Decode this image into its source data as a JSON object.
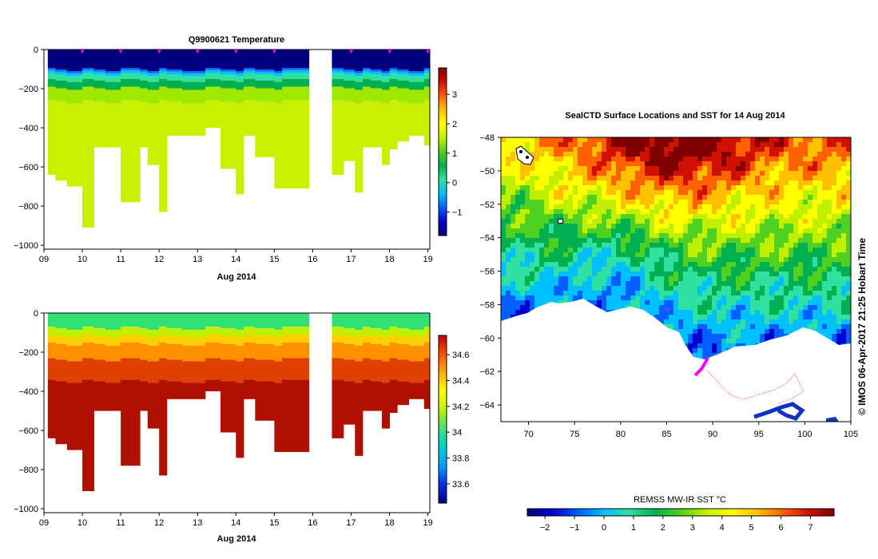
{
  "chart_data": [
    {
      "type": "heatmap",
      "name": "temperature-section",
      "title": "Q9900621  Temperature",
      "xlabel": "Aug 2014",
      "x_ticks": [
        "09",
        "10",
        "11",
        "12",
        "13",
        "14",
        "15",
        "16",
        "17",
        "18",
        "19"
      ],
      "x_range": [
        9,
        19.05
      ],
      "y_ticks": [
        "0",
        "−200",
        "−400",
        "−600",
        "−800",
        "−1000"
      ],
      "y_range": [
        -1020,
        0
      ],
      "colorbar": {
        "ticks": [
          "−1",
          "0",
          "1",
          "2",
          "3"
        ],
        "range": [
          -1.8,
          3.9
        ]
      },
      "profile_markers": [
        10,
        11,
        12,
        13,
        14,
        15,
        17,
        18,
        19
      ],
      "gap": [
        15.9,
        16.5
      ],
      "profile_edges": [
        9.1,
        9.3,
        9.6,
        10.0,
        10.3,
        10.6,
        11.0,
        11.5,
        11.7,
        12.0,
        12.2,
        12.6,
        13.2,
        13.6,
        14.0,
        14.2,
        14.5,
        15.0,
        15.2,
        15.9
      ],
      "profile_edges_2": [
        16.5,
        16.8,
        17.1,
        17.3,
        17.5,
        17.8,
        18.0,
        18.2,
        18.5,
        18.9,
        19.05
      ],
      "profile_depths": [
        640,
        670,
        700,
        910,
        500,
        500,
        780,
        500,
        590,
        830,
        440,
        440,
        400,
        610,
        740,
        440,
        550,
        710,
        710
      ],
      "profile_depths_2": [
        640,
        570,
        730,
        500,
        500,
        590,
        510,
        470,
        440,
        490
      ]
    },
    {
      "type": "heatmap",
      "name": "salinity-section",
      "title": "",
      "xlabel": "Aug 2014",
      "x_ticks": [
        "09",
        "10",
        "11",
        "12",
        "13",
        "14",
        "15",
        "16",
        "17",
        "18",
        "19"
      ],
      "x_range": [
        9,
        19.05
      ],
      "y_ticks": [
        "0",
        "−200",
        "−400",
        "−600",
        "−800",
        "−1000"
      ],
      "y_range": [
        -1020,
        0
      ],
      "colorbar": {
        "ticks": [
          "33.6",
          "33.8",
          "34",
          "34.2",
          "34.4",
          "34.6"
        ],
        "range": [
          33.45,
          34.75
        ]
      }
    },
    {
      "type": "heatmap",
      "name": "sst-map",
      "title": "SealCTD Surface Locations and SST for 14 Aug 2014",
      "x_ticks": [
        "70",
        "75",
        "80",
        "85",
        "90",
        "95",
        "100",
        "105"
      ],
      "x_range": [
        67,
        105
      ],
      "y_ticks": [
        "−48",
        "−50",
        "−52",
        "−54",
        "−56",
        "−58",
        "−60",
        "−62",
        "−64"
      ],
      "y_range": [
        -65,
        -48
      ],
      "colorbar": {
        "label": "REMSS MW-IR SST °C",
        "ticks": [
          "−2",
          "−1",
          "0",
          "1",
          "2",
          "3",
          "4",
          "5",
          "6",
          "7"
        ],
        "range": [
          -2.6,
          7.8
        ]
      },
      "credit": "© IMOS 06-Apr-2017 21:25 Hobart Time"
    }
  ],
  "colors": {
    "scale": [
      "#00007f",
      "#0000d0",
      "#0060ff",
      "#00c0ff",
      "#30e0a0",
      "#00b050",
      "#50d020",
      "#c0f000",
      "#ffff00",
      "#ffc000",
      "#ff6000",
      "#d01000",
      "#800000"
    ],
    "track": "#ff00ff"
  }
}
